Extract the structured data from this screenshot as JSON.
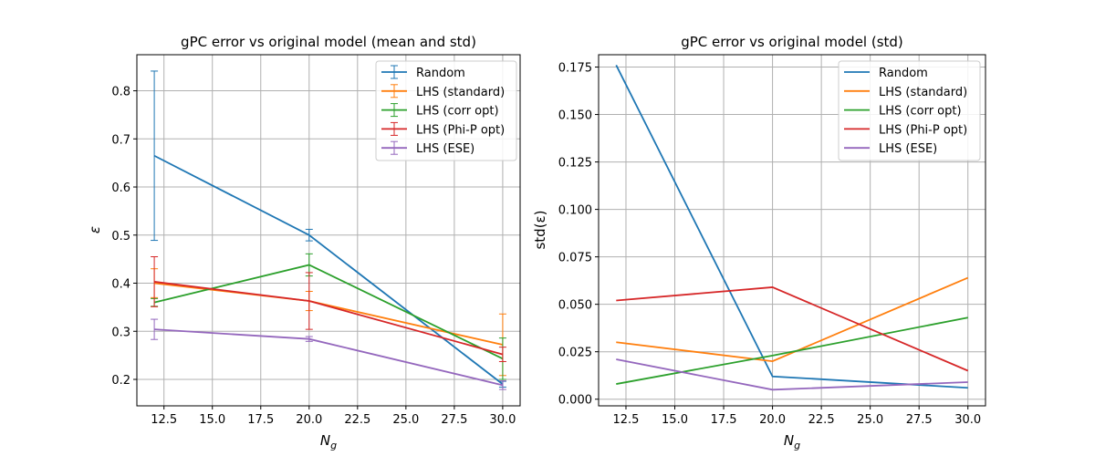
{
  "colors": {
    "Random": "#1f77b4",
    "LHS (standard)": "#ff7f0e",
    "LHS (corr opt)": "#2ca02c",
    "LHS (Phi-P opt)": "#d62728",
    "LHS (ESE)": "#9467bd"
  },
  "chart_data": [
    {
      "type": "line",
      "title": "gPC error vs original model (mean and std)",
      "xlabel": "N_g",
      "ylabel": "ε",
      "xlim": [
        11.1,
        30.9
      ],
      "ylim": [
        0.145,
        0.875
      ],
      "xticks": [
        12.5,
        15.0,
        17.5,
        20.0,
        22.5,
        25.0,
        27.5,
        30.0
      ],
      "xtick_labels": [
        "12.5",
        "15.0",
        "17.5",
        "20.0",
        "22.5",
        "25.0",
        "27.5",
        "30.0"
      ],
      "yticks": [
        0.2,
        0.3,
        0.4,
        0.5,
        0.6,
        0.7,
        0.8
      ],
      "ytick_labels": [
        "0.2",
        "0.3",
        "0.4",
        "0.5",
        "0.6",
        "0.7",
        "0.8"
      ],
      "grid": true,
      "legend": "top-right",
      "legend_markers": "errorbar",
      "x": [
        12,
        20,
        30
      ],
      "series": [
        {
          "name": "Random",
          "values": [
            0.665,
            0.5,
            0.19
          ],
          "errors": [
            0.176,
            0.012,
            0.006
          ]
        },
        {
          "name": "LHS (standard)",
          "values": [
            0.4,
            0.363,
            0.272
          ],
          "errors": [
            0.03,
            0.02,
            0.064
          ]
        },
        {
          "name": "LHS (corr opt)",
          "values": [
            0.36,
            0.438,
            0.243
          ],
          "errors": [
            0.008,
            0.023,
            0.043
          ]
        },
        {
          "name": "LHS (Phi-P opt)",
          "values": [
            0.403,
            0.363,
            0.252
          ],
          "errors": [
            0.052,
            0.059,
            0.015
          ]
        },
        {
          "name": "LHS (ESE)",
          "values": [
            0.304,
            0.284,
            0.188
          ],
          "errors": [
            0.021,
            0.005,
            0.009
          ]
        }
      ]
    },
    {
      "type": "line",
      "title": "gPC error vs original model (std)",
      "xlabel": "N_g",
      "ylabel": "std(ε)",
      "xlim": [
        11.1,
        30.9
      ],
      "ylim": [
        -0.0035,
        0.1815
      ],
      "xticks": [
        12.5,
        15.0,
        17.5,
        20.0,
        22.5,
        25.0,
        27.5,
        30.0
      ],
      "xtick_labels": [
        "12.5",
        "15.0",
        "17.5",
        "20.0",
        "22.5",
        "25.0",
        "27.5",
        "30.0"
      ],
      "yticks": [
        0.0,
        0.025,
        0.05,
        0.075,
        0.1,
        0.125,
        0.15,
        0.175
      ],
      "ytick_labels": [
        "0.000",
        "0.025",
        "0.050",
        "0.075",
        "0.100",
        "0.125",
        "0.150",
        "0.175"
      ],
      "grid": true,
      "legend": "top-right",
      "legend_markers": "line",
      "x": [
        12,
        20,
        30
      ],
      "series": [
        {
          "name": "Random",
          "values": [
            0.176,
            0.012,
            0.006
          ]
        },
        {
          "name": "LHS (standard)",
          "values": [
            0.03,
            0.02,
            0.064
          ]
        },
        {
          "name": "LHS (corr opt)",
          "values": [
            0.008,
            0.023,
            0.043
          ]
        },
        {
          "name": "LHS (Phi-P opt)",
          "values": [
            0.052,
            0.059,
            0.015
          ]
        },
        {
          "name": "LHS (ESE)",
          "values": [
            0.021,
            0.005,
            0.009
          ]
        }
      ]
    }
  ]
}
